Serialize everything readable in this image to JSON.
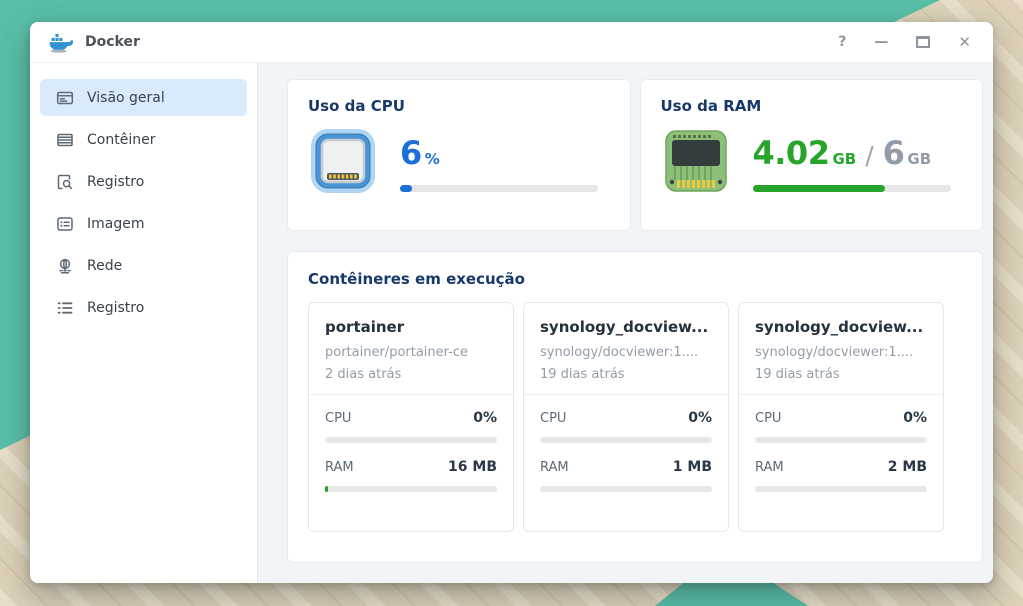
{
  "window": {
    "title": "Docker",
    "controls": {
      "help": "?",
      "minimize": "—",
      "close": "✕"
    }
  },
  "sidebar": {
    "items": [
      {
        "label": "Visão geral",
        "icon": "overview-icon",
        "selected": true
      },
      {
        "label": "Contêiner",
        "icon": "container-icon",
        "selected": false
      },
      {
        "label": "Registro",
        "icon": "log-search-icon",
        "selected": false
      },
      {
        "label": "Imagem",
        "icon": "image-icon",
        "selected": false
      },
      {
        "label": "Rede",
        "icon": "network-icon",
        "selected": false
      },
      {
        "label": "Registro",
        "icon": "registry-list-icon",
        "selected": false
      }
    ]
  },
  "overview": {
    "cpu": {
      "title": "Uso da CPU",
      "icon": "cpu-chip-icon",
      "value": "6",
      "unit": "%",
      "percent": 6,
      "accent": "#1b6fd7"
    },
    "ram": {
      "title": "Uso da RAM",
      "icon": "ram-chip-icon",
      "used": "4.02",
      "used_unit": "GB",
      "sep": "/",
      "total": "6",
      "total_unit": "GB",
      "percent": 67,
      "accent": "#27a52b"
    }
  },
  "containers": {
    "title": "Contêineres em execução",
    "items": [
      {
        "name": "portainer",
        "image": "portainer/portainer-ce",
        "age": "2 dias atrás",
        "cpu_label": "CPU",
        "cpu_value": "0%",
        "cpu_percent": 0,
        "ram_label": "RAM",
        "ram_value": "16 MB",
        "ram_percent": 2
      },
      {
        "name": "synology_docview...",
        "image": "synology/docviewer:1....",
        "age": "19 dias atrás",
        "cpu_label": "CPU",
        "cpu_value": "0%",
        "cpu_percent": 0,
        "ram_label": "RAM",
        "ram_value": "1 MB",
        "ram_percent": 0
      },
      {
        "name": "synology_docview...",
        "image": "synology/docviewer:1....",
        "age": "19 dias atrás",
        "cpu_label": "CPU",
        "cpu_value": "0%",
        "cpu_percent": 0,
        "ram_label": "RAM",
        "ram_value": "2 MB",
        "ram_percent": 0
      }
    ]
  },
  "colors": {
    "accent_blue": "#1b6fd7",
    "accent_green": "#27a52b",
    "wallpaper_teal": "#59bfa9",
    "wallpaper_beige": "#ddd2b9",
    "selected_item_bg": "#d9eafc",
    "main_bg": "#f1f5f8",
    "title_navy": "#17396a"
  }
}
